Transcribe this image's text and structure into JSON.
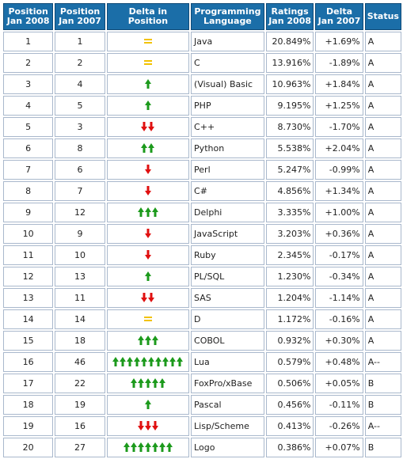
{
  "headers": {
    "pos2008": [
      "Position",
      "Jan 2008"
    ],
    "pos2007": [
      "Position",
      "Jan 2007"
    ],
    "delta": [
      "Delta in",
      "Position"
    ],
    "language": [
      "Programming",
      "Language"
    ],
    "ratings": [
      "Ratings",
      "Jan 2008"
    ],
    "change": [
      "Delta",
      "Jan 2007"
    ],
    "status": [
      "Status"
    ]
  },
  "colors": {
    "header_bg": "#1b6ea8",
    "up": "#1c9a1c",
    "down": "#e01010",
    "equal": "#f2c200",
    "link": "#1f5fa8"
  },
  "rows": [
    {
      "pos2008": "1",
      "pos2007": "1",
      "language": "Java",
      "ratings": "20.849%",
      "change": "+1.69%",
      "status": "A",
      "delta_icon": "equal",
      "delta_count": 1
    },
    {
      "pos2008": "2",
      "pos2007": "2",
      "language": "C",
      "ratings": "13.916%",
      "change": "-1.89%",
      "status": "A",
      "delta_icon": "equal",
      "delta_count": 1
    },
    {
      "pos2008": "3",
      "pos2007": "4",
      "language": "(Visual) Basic",
      "ratings": "10.963%",
      "change": "+1.84%",
      "status": "A",
      "delta_icon": "up",
      "delta_count": 1
    },
    {
      "pos2008": "4",
      "pos2007": "5",
      "language": "PHP",
      "ratings": "9.195%",
      "change": "+1.25%",
      "status": "A",
      "delta_icon": "up",
      "delta_count": 1
    },
    {
      "pos2008": "5",
      "pos2007": "3",
      "language": "C++",
      "ratings": "8.730%",
      "change": "-1.70%",
      "status": "A",
      "delta_icon": "down",
      "delta_count": 2
    },
    {
      "pos2008": "6",
      "pos2007": "8",
      "language": "Python",
      "ratings": "5.538%",
      "change": "+2.04%",
      "status": "A",
      "delta_icon": "up",
      "delta_count": 2
    },
    {
      "pos2008": "7",
      "pos2007": "6",
      "language": "Perl",
      "ratings": "5.247%",
      "change": "-0.99%",
      "status": "A",
      "delta_icon": "down",
      "delta_count": 1
    },
    {
      "pos2008": "8",
      "pos2007": "7",
      "language": "C#",
      "ratings": "4.856%",
      "change": "+1.34%",
      "status": "A",
      "delta_icon": "down",
      "delta_count": 1
    },
    {
      "pos2008": "9",
      "pos2007": "12",
      "language": "Delphi",
      "ratings": "3.335%",
      "change": "+1.00%",
      "status": "A",
      "delta_icon": "up",
      "delta_count": 3
    },
    {
      "pos2008": "10",
      "pos2007": "9",
      "language": "JavaScript",
      "ratings": "3.203%",
      "change": "+0.36%",
      "status": "A",
      "delta_icon": "down",
      "delta_count": 1
    },
    {
      "pos2008": "11",
      "pos2007": "10",
      "language": "Ruby",
      "ratings": "2.345%",
      "change": "-0.17%",
      "status": "A",
      "delta_icon": "down",
      "delta_count": 1
    },
    {
      "pos2008": "12",
      "pos2007": "13",
      "language": "PL/SQL",
      "ratings": "1.230%",
      "change": "-0.34%",
      "status": "A",
      "delta_icon": "up",
      "delta_count": 1
    },
    {
      "pos2008": "13",
      "pos2007": "11",
      "language": "SAS",
      "ratings": "1.204%",
      "change": "-1.14%",
      "status": "A",
      "delta_icon": "down",
      "delta_count": 2
    },
    {
      "pos2008": "14",
      "pos2007": "14",
      "language": "D",
      "ratings": "1.172%",
      "change": "-0.16%",
      "status": "A",
      "delta_icon": "equal",
      "delta_count": 1
    },
    {
      "pos2008": "15",
      "pos2007": "18",
      "language": "COBOL",
      "ratings": "0.932%",
      "change": "+0.30%",
      "status": "A",
      "delta_icon": "up",
      "delta_count": 3
    },
    {
      "pos2008": "16",
      "pos2007": "46",
      "language": "Lua",
      "ratings": "0.579%",
      "change": "+0.48%",
      "status": "A--",
      "delta_icon": "up",
      "delta_count": 10
    },
    {
      "pos2008": "17",
      "pos2007": "22",
      "language": "FoxPro/xBase",
      "ratings": "0.506%",
      "change": "+0.05%",
      "status": "B",
      "delta_icon": "up",
      "delta_count": 5
    },
    {
      "pos2008": "18",
      "pos2007": "19",
      "language": "Pascal",
      "ratings": "0.456%",
      "change": "-0.11%",
      "status": "B",
      "delta_icon": "up",
      "delta_count": 1
    },
    {
      "pos2008": "19",
      "pos2007": "16",
      "language": "Lisp/Scheme",
      "ratings": "0.413%",
      "change": "-0.26%",
      "status": "A--",
      "delta_icon": "down",
      "delta_count": 3
    },
    {
      "pos2008": "20",
      "pos2007": "27",
      "language": "Logo",
      "ratings": "0.386%",
      "change": "+0.07%",
      "status": "B",
      "delta_icon": "up",
      "delta_count": 7
    }
  ]
}
